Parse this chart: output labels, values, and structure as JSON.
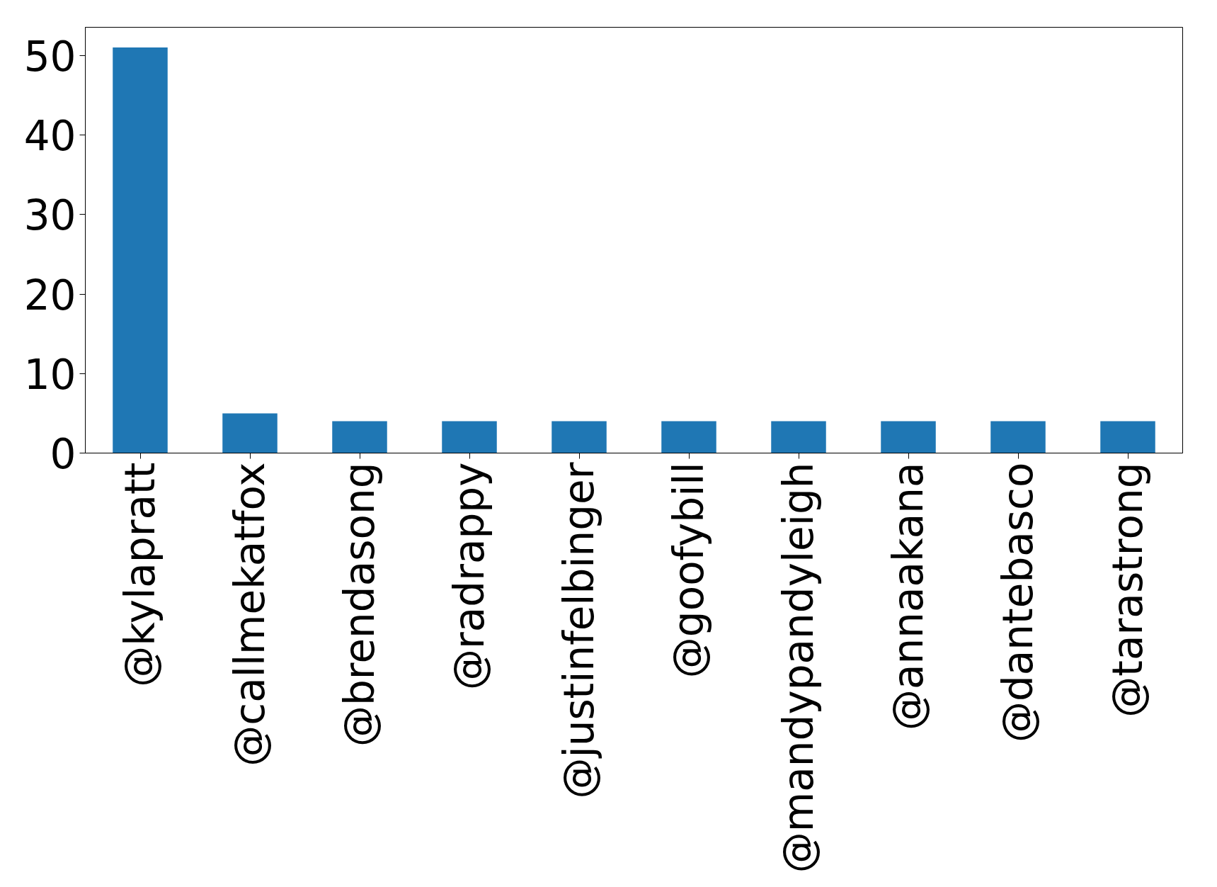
{
  "chart_data": {
    "type": "bar",
    "categories": [
      "@kylapratt",
      "@callmekatfox",
      "@brendasong",
      "@radrappy",
      "@justinfelbinger",
      "@goofybill",
      "@mandypandyleigh",
      "@annaakana",
      "@dantebasco",
      "@tarastrong"
    ],
    "values": [
      51,
      5,
      4,
      4,
      4,
      4,
      4,
      4,
      4,
      4
    ],
    "color": "#1f77b4",
    "ylim": [
      0,
      53.55
    ],
    "yticks": [
      0,
      10,
      20,
      30,
      40,
      50
    ],
    "grid": false
  }
}
